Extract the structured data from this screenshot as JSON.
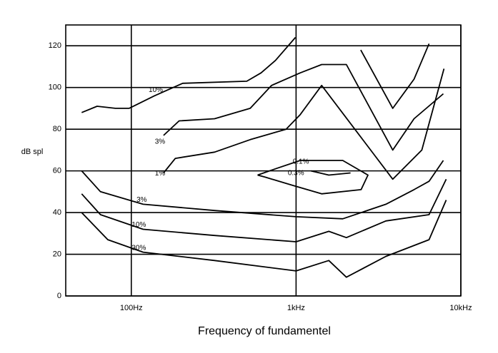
{
  "chart_data": {
    "type": "line",
    "xlabel": "Frequency of fundamentel",
    "ylabel": "dB spl",
    "xscale": "log",
    "xlim": [
      40,
      10000
    ],
    "ylim": [
      0,
      130
    ],
    "xticks": [
      {
        "value": 100,
        "label": "100Hz"
      },
      {
        "value": 1000,
        "label": "1kHz"
      },
      {
        "value": 10000,
        "label": "10kHz"
      }
    ],
    "yticks": [
      0,
      20,
      40,
      60,
      80,
      100,
      120
    ],
    "grid": true,
    "series": [
      {
        "name": "10%",
        "color": "#000000",
        "x": [
          50,
          62,
          80,
          97,
          138,
          205,
          502,
          613,
          750,
          991,
          null,
          2470,
          3860,
          5200,
          6410
        ],
        "values": [
          88,
          91,
          90,
          90,
          96,
          102,
          103,
          107,
          113,
          124,
          null,
          118,
          90,
          104,
          121
        ]
      },
      {
        "name": "3%",
        "color": "#000000",
        "x": [
          157,
          195,
          320,
          527,
          710,
          1060,
          1430,
          2020,
          3860,
          5200,
          7830
        ],
        "values": [
          77,
          84,
          85,
          90,
          101,
          107,
          111,
          111,
          70,
          85,
          97
        ]
      },
      {
        "name": "1%",
        "color": "#000000",
        "x": [
          157,
          185,
          320,
          527,
          870,
          1060,
          1430,
          3860,
          5800,
          7900
        ],
        "values": [
          59,
          66,
          69,
          75,
          80,
          87,
          101,
          56,
          70,
          109
        ]
      },
      {
        "name": "0.1%",
        "color": "#000000",
        "x": [
          1230,
          1580,
          2140
        ],
        "values": [
          60,
          58,
          59
        ]
      },
      {
        "name": "0.3%",
        "color": "#000000",
        "x": [
          584,
          750,
          1060,
          1920,
          2730,
          2480,
          1430,
          960,
          650,
          584
        ],
        "values": [
          58,
          61,
          65,
          65,
          58,
          51,
          49,
          53,
          57,
          58
        ]
      },
      {
        "name": "3%",
        "color": "#000000",
        "x": [
          50,
          65,
          118,
          320,
          1000,
          1920,
          3510,
          5200,
          6410,
          7830
        ],
        "values": [
          60,
          50,
          44,
          41,
          38,
          37,
          44,
          51,
          55,
          65
        ]
      },
      {
        "name": "10%",
        "color": "#000000",
        "x": [
          50,
          65,
          118,
          320,
          1000,
          1580,
          2020,
          3510,
          6410,
          8150
        ],
        "values": [
          49,
          39,
          32,
          29,
          26,
          31,
          28,
          36,
          39,
          56
        ]
      },
      {
        "name": "30%",
        "color": "#000000",
        "x": [
          50,
          72,
          118,
          320,
          1000,
          1580,
          2020,
          3510,
          6410,
          8150
        ],
        "values": [
          40,
          27,
          21,
          17,
          12,
          17,
          9,
          19,
          27,
          46
        ]
      }
    ]
  }
}
